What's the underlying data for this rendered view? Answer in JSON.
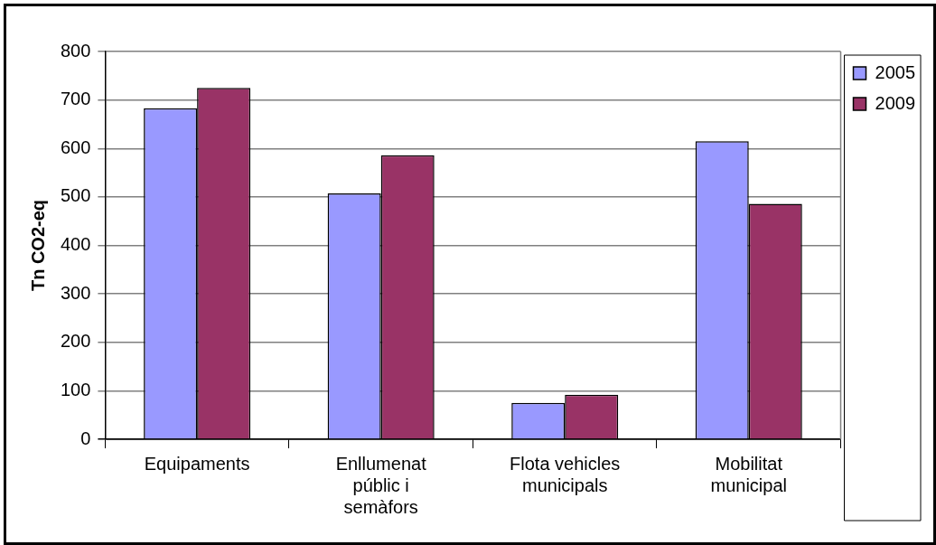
{
  "chart_data": {
    "type": "bar",
    "ylabel": "Tn CO2-eq",
    "categories": [
      "Equipaments",
      "Enllumenat públic i semàfors",
      "Flota vehicles municipals",
      "Mobilitat municipal"
    ],
    "series": [
      {
        "name": "2005",
        "color": "#9999ff",
        "values": [
          683,
          507,
          75,
          615
        ]
      },
      {
        "name": "2009",
        "color": "#993366",
        "values": [
          725,
          586,
          92,
          486
        ]
      }
    ],
    "ylim": [
      0,
      800
    ],
    "yticks": [
      0,
      100,
      200,
      300,
      400,
      500,
      600,
      700,
      800
    ],
    "grid": "y",
    "legend": "right"
  }
}
